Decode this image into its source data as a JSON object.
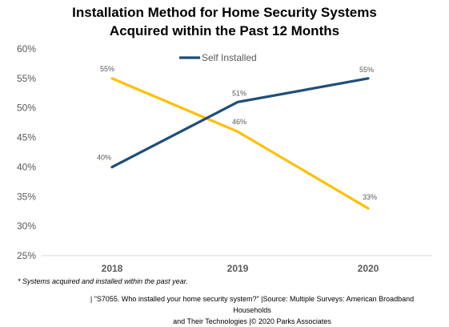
{
  "title_line1": "Installation Method for Home Security Systems",
  "title_line2": "Acquired within the Past 12 Months",
  "chart_data": {
    "type": "line",
    "categories": [
      "2018",
      "2019",
      "2020"
    ],
    "ylim": [
      25,
      60
    ],
    "yticks": [
      "25%",
      "30%",
      "35%",
      "40%",
      "45%",
      "50%",
      "55%",
      "60%"
    ],
    "series": [
      {
        "name": "Self Installed",
        "values": [
          40,
          51,
          55
        ],
        "labels": [
          "40%",
          "51%",
          "55%"
        ],
        "color": "#1f4e79"
      },
      {
        "name": "",
        "values": [
          55,
          46,
          33
        ],
        "labels": [
          "55%",
          "46%",
          "33%"
        ],
        "color": "#ffc000"
      }
    ],
    "legend": "top-center",
    "grid": false
  },
  "footnote": "* Systems acquired and installed within the past year.",
  "source_line1": "| \"S7055. Who installed your home security system?\" |Source: Multiple Surveys: American Broadband Households",
  "source_line2": "and Their Technologies |© 2020 Parks Associates"
}
